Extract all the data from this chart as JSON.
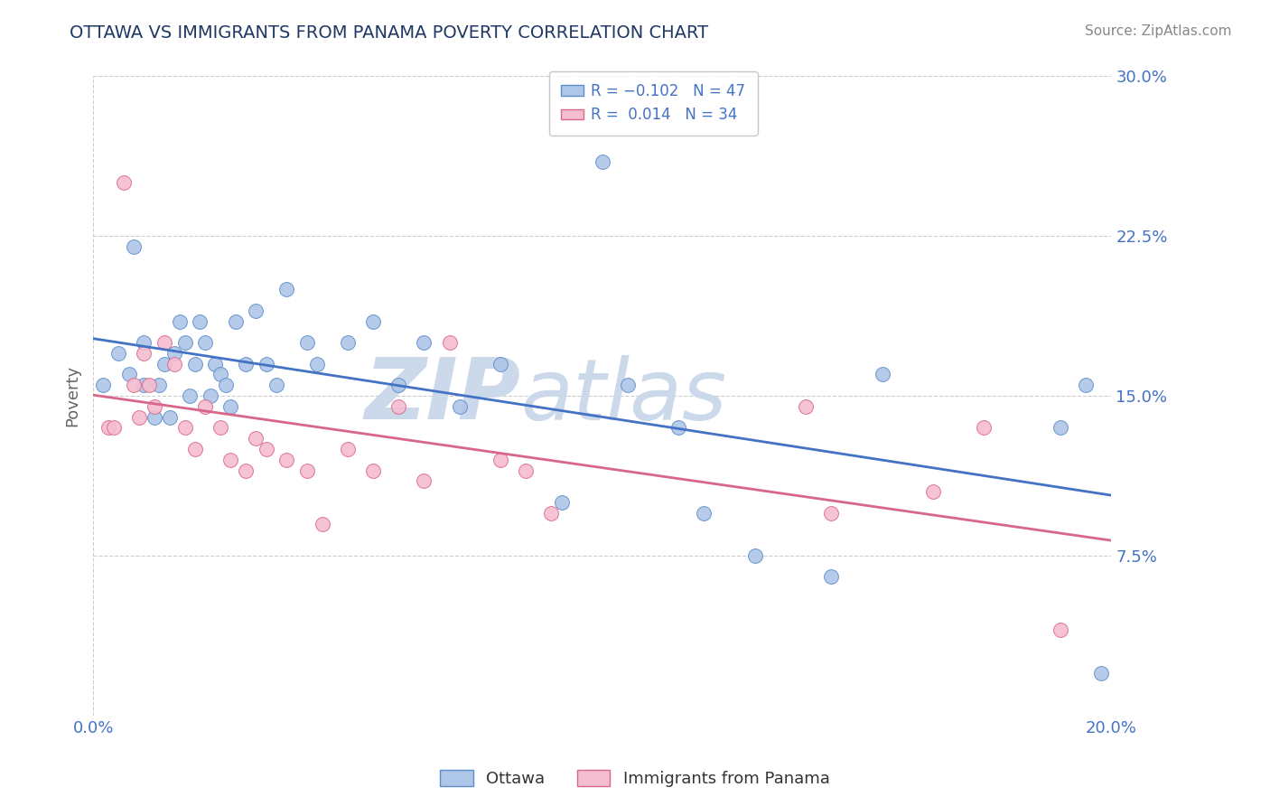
{
  "title": "OTTAWA VS IMMIGRANTS FROM PANAMA POVERTY CORRELATION CHART",
  "source": "Source: ZipAtlas.com",
  "ylabel": "Poverty",
  "xlim": [
    0.0,
    0.2
  ],
  "ylim": [
    0.0,
    0.3
  ],
  "yticks": [
    0.075,
    0.15,
    0.225,
    0.3
  ],
  "ytick_labels": [
    "7.5%",
    "15.0%",
    "22.5%",
    "30.0%"
  ],
  "xtick_labels": [
    "0.0%",
    "20.0%"
  ],
  "ottawa_R": -0.102,
  "ottawa_N": 47,
  "panama_R": 0.014,
  "panama_N": 34,
  "ottawa_color": "#aec6e8",
  "ottawa_edge_color": "#5b8dc8",
  "panama_color": "#f5bdd0",
  "panama_edge_color": "#d9678a",
  "ottawa_line_color": "#4472c4",
  "panama_line_color": "#d9678a",
  "background_color": "#ffffff",
  "grid_color": "#cccccc",
  "watermark_zip": "ZIP",
  "watermark_atlas": "atlas",
  "watermark_color": "#ccd9ea",
  "legend_label_ottawa": "Ottawa",
  "legend_label_panama": "Immigrants from Panama",
  "ottawa_scatter_x": [
    0.002,
    0.005,
    0.007,
    0.008,
    0.01,
    0.01,
    0.012,
    0.013,
    0.014,
    0.015,
    0.016,
    0.017,
    0.018,
    0.019,
    0.02,
    0.021,
    0.022,
    0.023,
    0.024,
    0.025,
    0.026,
    0.027,
    0.028,
    0.03,
    0.032,
    0.034,
    0.036,
    0.038,
    0.042,
    0.044,
    0.05,
    0.055,
    0.06,
    0.065,
    0.072,
    0.08,
    0.092,
    0.1,
    0.105,
    0.115,
    0.12,
    0.13,
    0.145,
    0.155,
    0.19,
    0.195,
    0.198
  ],
  "ottawa_scatter_y": [
    0.155,
    0.17,
    0.16,
    0.22,
    0.155,
    0.175,
    0.14,
    0.155,
    0.165,
    0.14,
    0.17,
    0.185,
    0.175,
    0.15,
    0.165,
    0.185,
    0.175,
    0.15,
    0.165,
    0.16,
    0.155,
    0.145,
    0.185,
    0.165,
    0.19,
    0.165,
    0.155,
    0.2,
    0.175,
    0.165,
    0.175,
    0.185,
    0.155,
    0.175,
    0.145,
    0.165,
    0.1,
    0.26,
    0.155,
    0.135,
    0.095,
    0.075,
    0.065,
    0.16,
    0.135,
    0.155,
    0.02
  ],
  "panama_scatter_x": [
    0.003,
    0.004,
    0.006,
    0.008,
    0.009,
    0.01,
    0.011,
    0.012,
    0.014,
    0.016,
    0.018,
    0.02,
    0.022,
    0.025,
    0.027,
    0.03,
    0.032,
    0.034,
    0.038,
    0.042,
    0.045,
    0.05,
    0.055,
    0.06,
    0.065,
    0.07,
    0.08,
    0.085,
    0.09,
    0.14,
    0.145,
    0.165,
    0.175,
    0.19
  ],
  "panama_scatter_y": [
    0.135,
    0.135,
    0.25,
    0.155,
    0.14,
    0.17,
    0.155,
    0.145,
    0.175,
    0.165,
    0.135,
    0.125,
    0.145,
    0.135,
    0.12,
    0.115,
    0.13,
    0.125,
    0.12,
    0.115,
    0.09,
    0.125,
    0.115,
    0.145,
    0.11,
    0.175,
    0.12,
    0.115,
    0.095,
    0.145,
    0.095,
    0.105,
    0.135,
    0.04
  ],
  "title_color": "#1f3864",
  "title_fontsize": 14,
  "axis_label_color": "#666666",
  "tick_label_color": "#4472c4",
  "source_color": "#888888",
  "legend_r_color": "#4472c4",
  "legend_n_color": "#4472c4"
}
